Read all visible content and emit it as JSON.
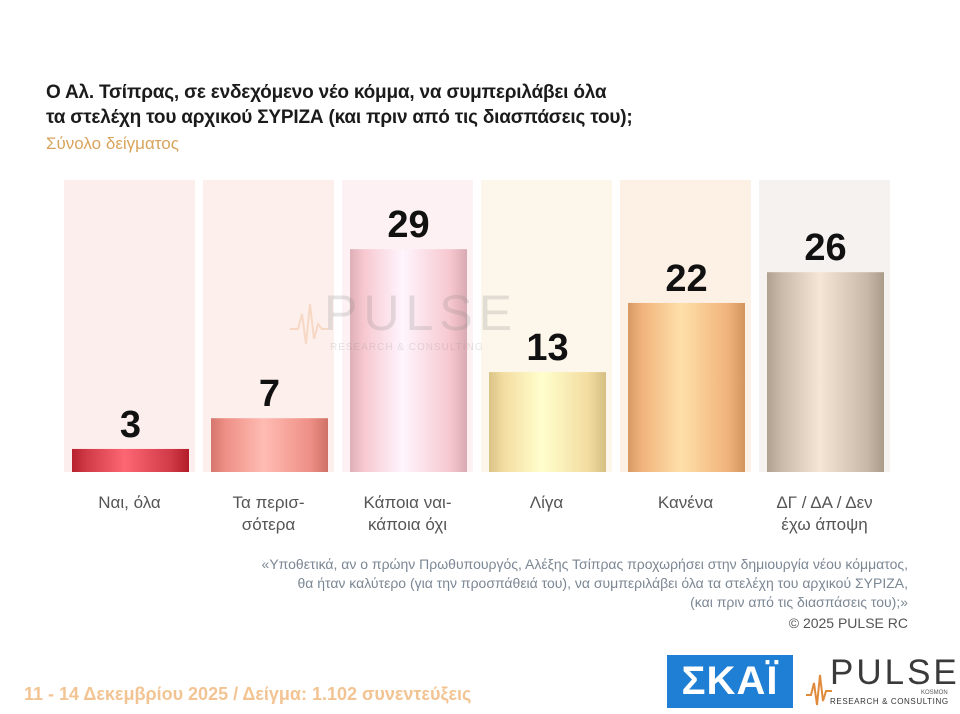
{
  "title_line1": "Ο Αλ. Τσίπρας, σε ενδεχόμενο νέο κόμμα, να συμπεριλάβει όλα",
  "title_line2": "τα στελέχη του αρχικού ΣΥΡΙΖΑ (και πριν από τις διασπάσεις του);",
  "subtitle": "Σύνολο δείγματος",
  "chart_data": {
    "type": "bar",
    "categories": [
      "Ναι, όλα",
      "Τα περισ-σότερα",
      "Κάποια ναι-κάποια όχι",
      "Λίγα",
      "Κανένα",
      "ΔΓ / ΔΑ / Δεν έχω άποψη"
    ],
    "category_lines": [
      [
        "Ναι, όλα"
      ],
      [
        "Τα περισ-",
        "σότερα"
      ],
      [
        "Κάποια ναι-",
        "κάποια όχι"
      ],
      [
        "Λίγα"
      ],
      [
        "Κανένα"
      ],
      [
        "ΔΓ / ΔΑ / Δεν",
        "έχω άποψη"
      ]
    ],
    "values": [
      3,
      7,
      29,
      13,
      22,
      26
    ],
    "colors": [
      "#d03a47",
      "#ee8f86",
      "#f7c8d0",
      "#f3dca0",
      "#f1b37c",
      "#c9b9a9"
    ],
    "background_colors": [
      "#fdeeee",
      "#fdefec",
      "#fdf1f3",
      "#fdf6ea",
      "#fdf0e5",
      "#f6f2ef"
    ],
    "ylim": [
      0,
      38
    ],
    "title": "",
    "xlabel": "",
    "ylabel": ""
  },
  "note_line1": "«Υποθετικά, αν ο πρώην Πρωθυπουργός, Αλέξης Τσίπρας προχωρήσει στην δημιουργία νέου κόμματος,",
  "note_line2": "θα ήταν καλύτερο (για την προσπάθειά του), να συμπεριλάβει όλα τα στελέχη του αρχικού ΣΥΡΙΖΑ,",
  "note_line3": "(και πριν από τις διασπάσεις του);»",
  "copyright": "©  2025  PULSE RC",
  "footer": "11 - 14 Δεκεμβρίου 2025  /  Δείγμα:  1.102 συνεντεύξεις",
  "logos": {
    "skai": "ΣΚΑΪ",
    "pulse": "PULSE",
    "pulse_sub": "RESEARCH & CONSULTING",
    "pulse_tag": "KOSMON",
    "watermark": "PULSE",
    "watermark_sub": "RESEARCH & CONSULTING"
  }
}
